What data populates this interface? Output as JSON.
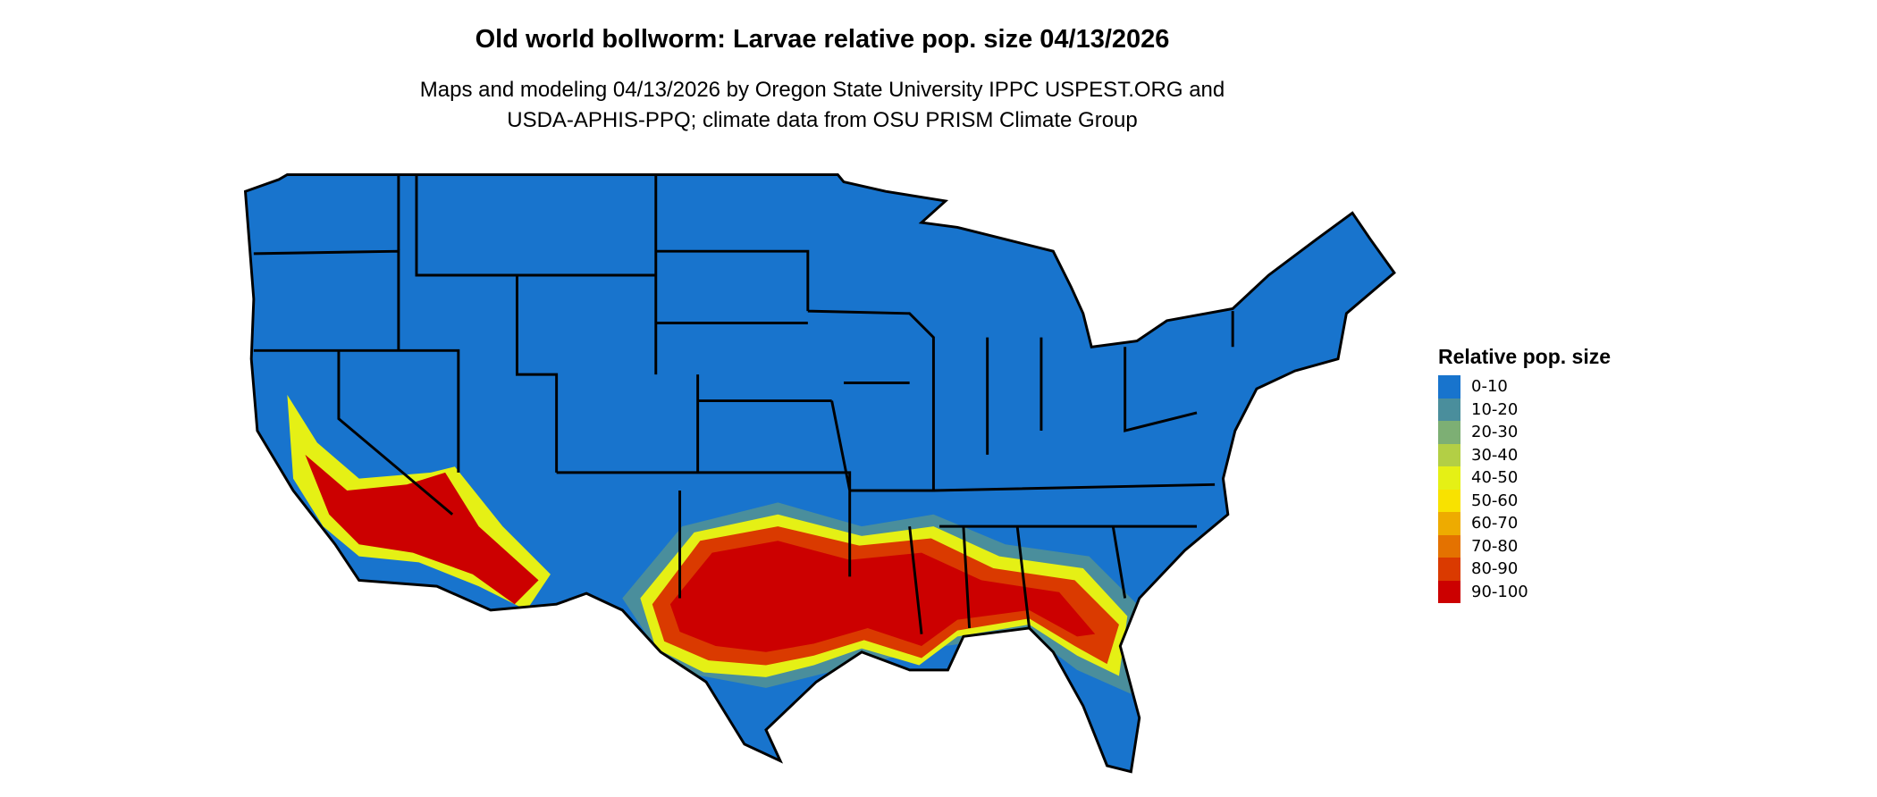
{
  "title": "Old world bollworm: Larvae relative pop. size 04/13/2026",
  "subtitle_line1": "Maps and modeling 04/13/2026 by Oregon State University IPPC USPEST.ORG and",
  "subtitle_line2": "USDA-APHIS-PPQ; climate data from OSU PRISM Climate Group",
  "legend": {
    "title": "Relative pop. size",
    "items": [
      {
        "label": "0-10",
        "color": "#1874CD"
      },
      {
        "label": "10-20",
        "color": "#4A8E9C"
      },
      {
        "label": "20-30",
        "color": "#7DAF74"
      },
      {
        "label": "30-40",
        "color": "#B3CF45"
      },
      {
        "label": "40-50",
        "color": "#E5F015"
      },
      {
        "label": "50-60",
        "color": "#F8E200"
      },
      {
        "label": "60-70",
        "color": "#EEAB00"
      },
      {
        "label": "70-80",
        "color": "#E47200"
      },
      {
        "label": "80-90",
        "color": "#DA3A00"
      },
      {
        "label": "90-100",
        "color": "#CC0000"
      }
    ]
  },
  "map": {
    "region": "contiguous United States",
    "base_color": "#1874CD",
    "border_color": "#000000"
  }
}
